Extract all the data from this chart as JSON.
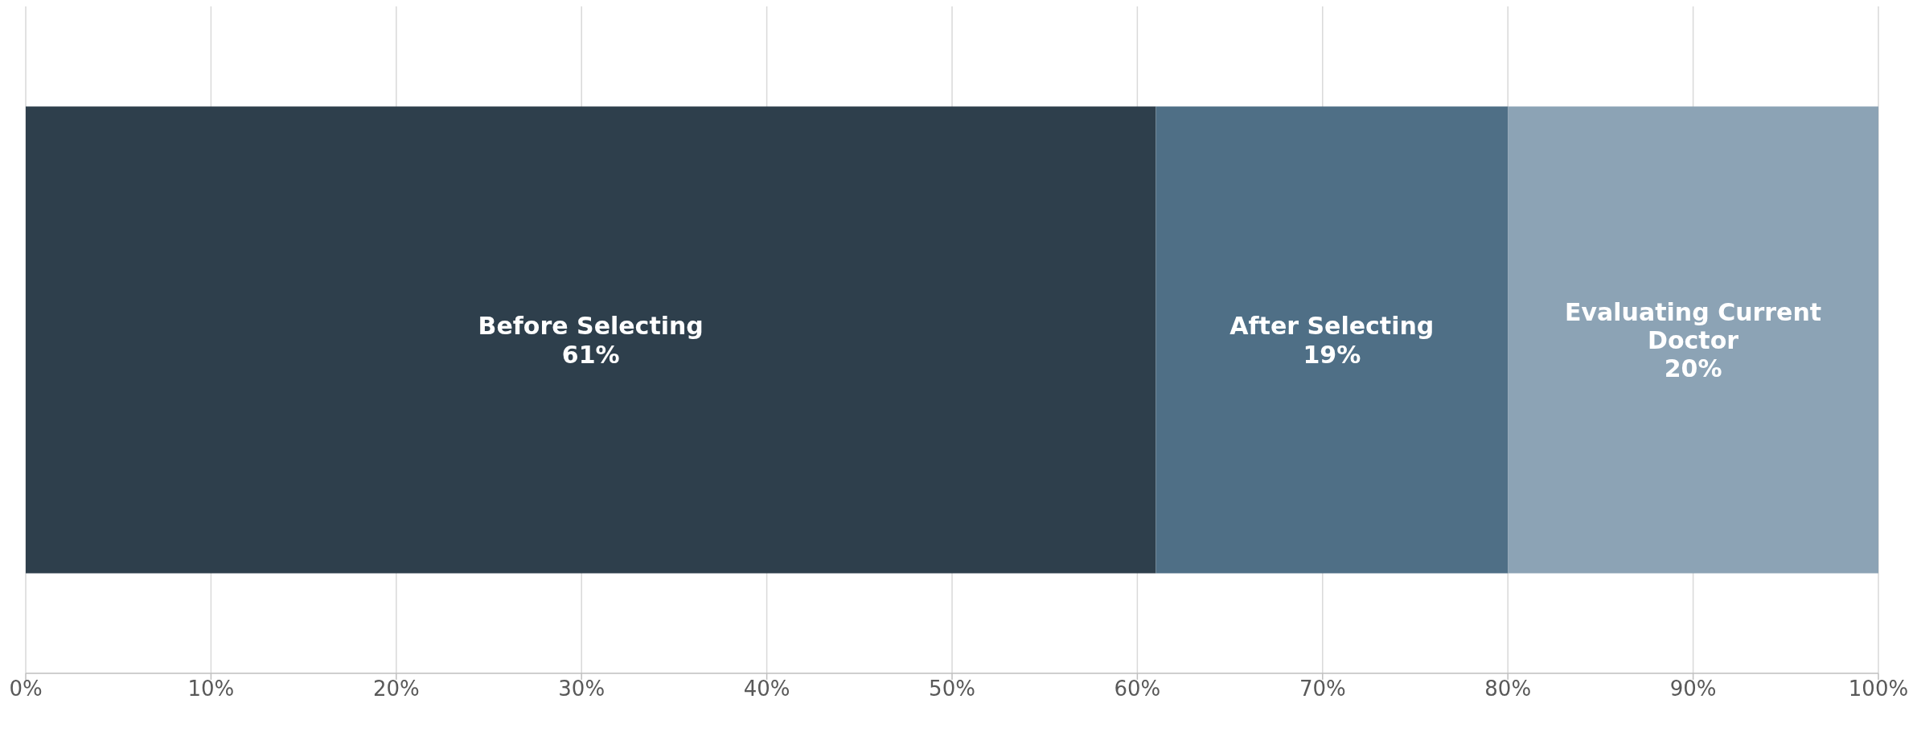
{
  "chart_data": {
    "type": "bar",
    "orientation": "horizontal",
    "stacked": true,
    "categories": [
      null
    ],
    "series": [
      {
        "name": "Before Selecting",
        "color": "#2e3f4c",
        "values": [
          61
        ],
        "value_labels": [
          "61%"
        ]
      },
      {
        "name": "After Selecting",
        "color": "#4f6f86",
        "values": [
          19
        ],
        "value_labels": [
          "19%"
        ]
      },
      {
        "name": "Evaluating Current Doctor",
        "color": "#8ca3b5",
        "values": [
          20
        ],
        "value_labels": [
          "20%"
        ]
      }
    ],
    "xlim": [
      0,
      100
    ],
    "xticks": [
      {
        "value": 0,
        "label": "0%"
      },
      {
        "value": 10,
        "label": "10%"
      },
      {
        "value": 20,
        "label": "20%"
      },
      {
        "value": 30,
        "label": "30%"
      },
      {
        "value": 40,
        "label": "40%"
      },
      {
        "value": 50,
        "label": "50%"
      },
      {
        "value": 60,
        "label": "60%"
      },
      {
        "value": 70,
        "label": "70%"
      },
      {
        "value": 80,
        "label": "80%"
      },
      {
        "value": 90,
        "label": "90%"
      },
      {
        "value": 100,
        "label": "100%"
      }
    ],
    "grid": "x",
    "legend": false
  }
}
